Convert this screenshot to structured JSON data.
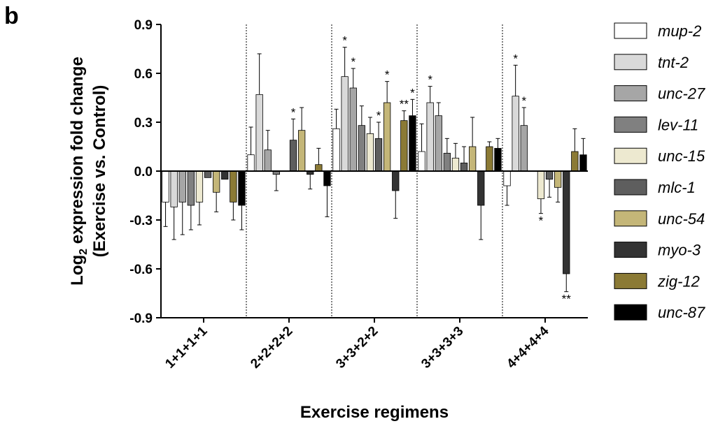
{
  "panel_label": "b",
  "colors": {
    "mup-2": "#ffffff",
    "tnt-2": "#d9d9d9",
    "unc-27": "#a6a6a6",
    "lev-11": "#808080",
    "unc-15": "#ede9d0",
    "mlc-1": "#5e5e5e",
    "unc-54": "#c4b678",
    "myo-3": "#333333",
    "zig-12": "#8b7a35",
    "unc-87": "#000000"
  },
  "chart_data": {
    "type": "bar",
    "title": "",
    "xlabel": "Exercise regimens",
    "ylabel_main": "Log",
    "ylabel_sub": "2",
    "ylabel_rest": " expression fold change",
    "ylabel_line2": "(Exercise vs. Control)",
    "ylim": [
      -0.9,
      0.9
    ],
    "yticks": [
      -0.9,
      -0.6,
      -0.3,
      0.0,
      0.3,
      0.6,
      0.9
    ],
    "ytick_labels": [
      "-0.9",
      "-0.6",
      "-0.3",
      "0.0",
      "0.3",
      "0.6",
      "0.9"
    ],
    "categories": [
      "1+1+1+1",
      "2+2+2+2",
      "3+3+2+2",
      "3+3+3+3",
      "4+4+4+4"
    ],
    "legend_position": "right",
    "series": [
      {
        "name": "mup-2",
        "values": [
          -0.19,
          0.1,
          0.26,
          0.12,
          -0.09
        ],
        "errors": [
          0.15,
          0.17,
          0.12,
          0.17,
          0.12
        ],
        "sig": [
          "",
          "",
          "",
          "",
          ""
        ]
      },
      {
        "name": "tnt-2",
        "values": [
          -0.22,
          0.47,
          0.58,
          0.42,
          0.46
        ],
        "errors": [
          0.2,
          0.25,
          0.18,
          0.1,
          0.19
        ],
        "sig": [
          "",
          "",
          "*",
          "*",
          "*"
        ]
      },
      {
        "name": "unc-27",
        "values": [
          -0.19,
          0.13,
          0.51,
          0.34,
          0.28
        ],
        "errors": [
          0.2,
          0.12,
          0.12,
          0.08,
          0.11
        ],
        "sig": [
          "",
          "",
          "*",
          "",
          "*"
        ]
      },
      {
        "name": "lev-11",
        "values": [
          -0.21,
          -0.02,
          0.28,
          0.11,
          0.0
        ],
        "errors": [
          0.15,
          0.1,
          0.12,
          0.09,
          0.0
        ],
        "sig": [
          "",
          "",
          "",
          "",
          ""
        ]
      },
      {
        "name": "unc-15",
        "values": [
          -0.19,
          0.0,
          0.23,
          0.08,
          -0.17
        ],
        "errors": [
          0.14,
          0.0,
          0.1,
          0.09,
          0.09
        ],
        "sig": [
          "",
          "",
          "",
          "",
          "*"
        ]
      },
      {
        "name": "mlc-1",
        "values": [
          -0.04,
          0.19,
          0.2,
          0.05,
          -0.05
        ],
        "errors": [
          0.0,
          0.13,
          0.1,
          0.1,
          0.11
        ],
        "sig": [
          "",
          "*",
          "*",
          "",
          ""
        ]
      },
      {
        "name": "unc-54",
        "values": [
          -0.13,
          0.25,
          0.42,
          0.15,
          -0.1
        ],
        "errors": [
          0.12,
          0.14,
          0.13,
          0.18,
          0.09
        ],
        "sig": [
          "",
          "",
          "*",
          "",
          ""
        ]
      },
      {
        "name": "myo-3",
        "values": [
          -0.05,
          -0.02,
          -0.12,
          -0.21,
          -0.63
        ],
        "errors": [
          0.0,
          0.09,
          0.17,
          0.21,
          0.11
        ],
        "sig": [
          "",
          "",
          "",
          "",
          "**"
        ]
      },
      {
        "name": "zig-12",
        "values": [
          -0.19,
          0.04,
          0.31,
          0.15,
          0.12
        ],
        "errors": [
          0.11,
          0.1,
          0.06,
          0.03,
          0.14
        ],
        "sig": [
          "",
          "",
          "**",
          "",
          ""
        ]
      },
      {
        "name": "unc-87",
        "values": [
          -0.21,
          -0.09,
          0.34,
          0.14,
          0.1
        ],
        "errors": [
          0.15,
          0.19,
          0.1,
          0.06,
          0.1
        ],
        "sig": [
          "",
          "",
          "*",
          "",
          ""
        ]
      }
    ]
  }
}
